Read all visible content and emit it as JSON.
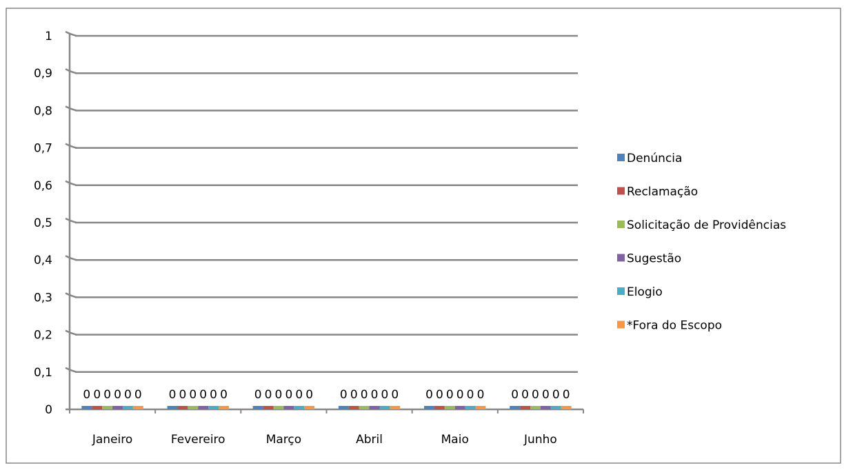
{
  "chart_data": {
    "type": "bar",
    "categories": [
      "Janeiro",
      "Fevereiro",
      "Março",
      "Abril",
      "Maio",
      "Junho"
    ],
    "series": [
      {
        "name": "Denúncia",
        "values": [
          0,
          0,
          0,
          0,
          0,
          0
        ]
      },
      {
        "name": "Reclamação",
        "values": [
          0,
          0,
          0,
          0,
          0,
          0
        ]
      },
      {
        "name": "Solicitação de Providências",
        "values": [
          0,
          0,
          0,
          0,
          0,
          0
        ]
      },
      {
        "name": "Sugestão",
        "values": [
          0,
          0,
          0,
          0,
          0,
          0
        ]
      },
      {
        "name": "Elogio",
        "values": [
          0,
          0,
          0,
          0,
          0,
          0
        ]
      },
      {
        "name": "*Fora do Escopo",
        "values": [
          0,
          0,
          0,
          0,
          0,
          0
        ]
      }
    ],
    "ylim": [
      0,
      1
    ],
    "yticks": [
      "0",
      "0,1",
      "0,2",
      "0,3",
      "0,4",
      "0,5",
      "0,6",
      "0,7",
      "0,8",
      "0,9",
      "1"
    ],
    "grid": true,
    "legend_position": "right",
    "data_labels": true,
    "colors": {
      "Denúncia": "#4f81bd",
      "Reclamação": "#c0504d",
      "Solicitação de Providências": "#9bbb59",
      "Sugestão": "#8064a2",
      "Elogio": "#4bacc6",
      "*Fora do Escopo": "#f79646",
      "gridline": "#868686",
      "frame": "#868686"
    }
  }
}
